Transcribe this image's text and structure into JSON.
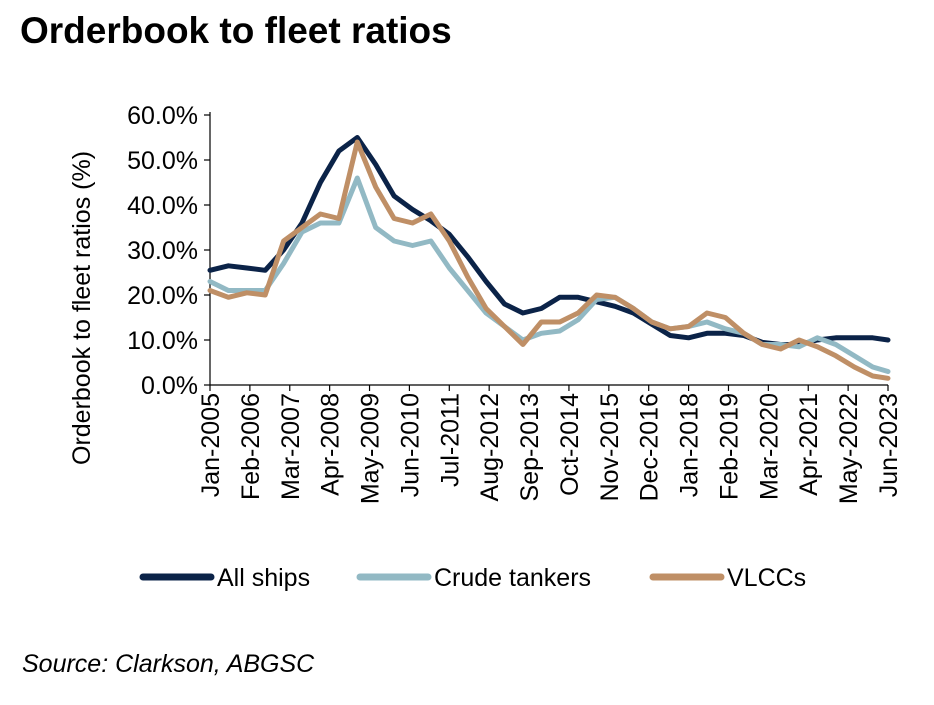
{
  "title": "Orderbook to fleet ratios",
  "source": "Source: Clarkson, ABGSC",
  "chart_data": {
    "type": "line",
    "title": "Orderbook to fleet ratios",
    "ylabel": "Orderbook to fleet ratios (%)",
    "xlabel": "",
    "ylim": [
      0,
      60
    ],
    "y_ticks": [
      "0.0%",
      "10.0%",
      "20.0%",
      "30.0%",
      "40.0%",
      "50.0%",
      "60.0%"
    ],
    "x_ticks": [
      "Jan-2005",
      "Feb-2006",
      "Mar-2007",
      "Apr-2008",
      "May-2009",
      "Jun-2010",
      "Jul-2011",
      "Aug-2012",
      "Sep-2013",
      "Oct-2014",
      "Nov-2015",
      "Dec-2016",
      "Jan-2018",
      "Feb-2019",
      "Mar-2020",
      "Apr-2021",
      "May-2022",
      "Jun-2023"
    ],
    "x": [
      "Jan-2005",
      "Jul-2005",
      "Jan-2006",
      "Jul-2006",
      "Jan-2007",
      "Jul-2007",
      "Jan-2008",
      "Jul-2008",
      "Jan-2009",
      "Jul-2009",
      "Jan-2010",
      "Jul-2010",
      "Jan-2011",
      "Jul-2011",
      "Jan-2012",
      "Jul-2012",
      "Jan-2013",
      "Jul-2013",
      "Jan-2014",
      "Jul-2014",
      "Jan-2015",
      "Jul-2015",
      "Jan-2016",
      "Jul-2016",
      "Jan-2017",
      "Jul-2017",
      "Jan-2018",
      "Jul-2018",
      "Jan-2019",
      "Jul-2019",
      "Jan-2020",
      "Jul-2020",
      "Jan-2021",
      "Jul-2021",
      "Jan-2022",
      "Jul-2022",
      "Jan-2023",
      "Jun-2023"
    ],
    "series": [
      {
        "name": "All ships",
        "color": "#0b2348",
        "values": [
          25.5,
          26.5,
          26.0,
          25.5,
          30.0,
          36.0,
          45.0,
          52.0,
          55.0,
          49.0,
          42.0,
          39.0,
          36.5,
          33.5,
          28.5,
          23.0,
          18.0,
          16.0,
          17.0,
          19.5,
          19.5,
          18.5,
          17.5,
          16.0,
          13.5,
          11.0,
          10.5,
          11.5,
          11.5,
          11.0,
          9.5,
          9.0,
          9.0,
          10.0,
          10.5,
          10.5,
          10.5,
          10.0
        ]
      },
      {
        "name": "Crude tankers",
        "color": "#92b9c4",
        "values": [
          23.0,
          21.0,
          21.0,
          21.0,
          27.0,
          34.0,
          36.0,
          36.0,
          46.0,
          35.0,
          32.0,
          31.0,
          32.0,
          26.0,
          21.0,
          16.0,
          13.0,
          10.0,
          11.5,
          12.0,
          14.5,
          19.0,
          19.5,
          17.0,
          14.0,
          12.5,
          13.0,
          14.0,
          12.5,
          11.5,
          9.0,
          9.0,
          8.5,
          10.5,
          9.0,
          6.5,
          4.0,
          3.0
        ]
      },
      {
        "name": "VLCCs",
        "color": "#bf8f66",
        "values": [
          21.0,
          19.5,
          20.5,
          20.0,
          32.0,
          35.0,
          38.0,
          37.0,
          54.0,
          44.0,
          37.0,
          36.0,
          38.0,
          32.0,
          24.0,
          17.0,
          13.0,
          9.0,
          14.0,
          14.0,
          16.0,
          20.0,
          19.5,
          17.0,
          14.0,
          12.5,
          13.0,
          16.0,
          15.0,
          11.5,
          9.0,
          8.0,
          10.0,
          8.5,
          6.5,
          4.0,
          2.0,
          1.5
        ]
      }
    ],
    "legend_position": "bottom",
    "grid": false
  }
}
